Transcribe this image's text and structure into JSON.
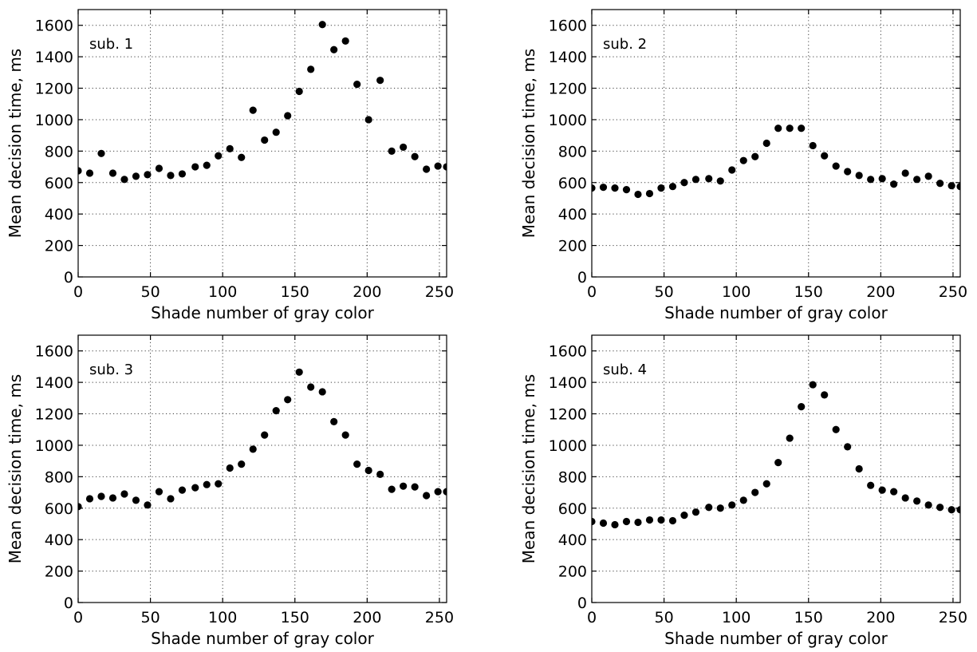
{
  "chart_data": [
    {
      "type": "scatter",
      "title": "",
      "panel_label": "sub. 1",
      "xlabel": "Shade number of gray color",
      "ylabel": "Mean decision time, ms",
      "xlim": [
        0,
        255
      ],
      "ylim": [
        0,
        1700
      ],
      "xticks": [
        0,
        50,
        100,
        150,
        200,
        250
      ],
      "yticks": [
        0,
        200,
        400,
        600,
        800,
        1000,
        1200,
        1400,
        1600
      ],
      "grid": true,
      "marker_color": "#000000",
      "x": [
        0,
        8,
        16,
        24,
        32,
        40,
        48,
        56,
        64,
        72,
        81,
        89,
        97,
        105,
        113,
        121,
        129,
        137,
        145,
        153,
        161,
        169,
        177,
        185,
        193,
        201,
        209,
        217,
        225,
        233,
        241,
        249,
        255
      ],
      "y": [
        675,
        660,
        785,
        660,
        620,
        640,
        650,
        690,
        645,
        655,
        700,
        710,
        770,
        815,
        760,
        1060,
        870,
        920,
        1025,
        1180,
        1320,
        1605,
        1445,
        1500,
        1225,
        1000,
        1250,
        800,
        825,
        765,
        685,
        705,
        700
      ]
    },
    {
      "type": "scatter",
      "title": "",
      "panel_label": "sub. 2",
      "xlabel": "Shade number of gray color",
      "ylabel": "Mean decision time, ms",
      "xlim": [
        0,
        255
      ],
      "ylim": [
        0,
        1700
      ],
      "xticks": [
        0,
        50,
        100,
        150,
        200,
        250
      ],
      "yticks": [
        0,
        200,
        400,
        600,
        800,
        1000,
        1200,
        1400,
        1600
      ],
      "grid": true,
      "marker_color": "#000000",
      "x": [
        0,
        8,
        16,
        24,
        32,
        40,
        48,
        56,
        64,
        72,
        81,
        89,
        97,
        105,
        113,
        121,
        129,
        137,
        145,
        153,
        161,
        169,
        177,
        185,
        193,
        201,
        209,
        217,
        225,
        233,
        241,
        249,
        255
      ],
      "y": [
        565,
        570,
        565,
        555,
        525,
        530,
        565,
        575,
        600,
        620,
        625,
        610,
        680,
        740,
        765,
        850,
        945,
        945,
        945,
        835,
        770,
        705,
        670,
        645,
        620,
        625,
        590,
        660,
        620,
        640,
        595,
        580,
        575
      ]
    },
    {
      "type": "scatter",
      "title": "",
      "panel_label": "sub. 3",
      "xlabel": "Shade number of gray color",
      "ylabel": "Mean decision time, ms",
      "xlim": [
        0,
        255
      ],
      "ylim": [
        0,
        1700
      ],
      "xticks": [
        0,
        50,
        100,
        150,
        200,
        250
      ],
      "yticks": [
        0,
        200,
        400,
        600,
        800,
        1000,
        1200,
        1400,
        1600
      ],
      "grid": true,
      "marker_color": "#000000",
      "x": [
        0,
        8,
        16,
        24,
        32,
        40,
        48,
        56,
        64,
        72,
        81,
        89,
        97,
        105,
        113,
        121,
        129,
        137,
        145,
        153,
        161,
        169,
        177,
        185,
        193,
        201,
        209,
        217,
        225,
        233,
        241,
        249,
        255
      ],
      "y": [
        610,
        660,
        675,
        665,
        690,
        650,
        620,
        705,
        660,
        715,
        730,
        750,
        755,
        855,
        880,
        975,
        1065,
        1220,
        1290,
        1465,
        1370,
        1340,
        1150,
        1065,
        880,
        840,
        815,
        720,
        740,
        735,
        680,
        705,
        705
      ]
    },
    {
      "type": "scatter",
      "title": "",
      "panel_label": "sub. 4",
      "xlabel": "Shade number of gray color",
      "ylabel": "Mean decision time, ms",
      "xlim": [
        0,
        255
      ],
      "ylim": [
        0,
        1700
      ],
      "xticks": [
        0,
        50,
        100,
        150,
        200,
        250
      ],
      "yticks": [
        0,
        200,
        400,
        600,
        800,
        1000,
        1200,
        1400,
        1600
      ],
      "grid": true,
      "marker_color": "#000000",
      "x": [
        0,
        8,
        16,
        24,
        32,
        40,
        48,
        56,
        64,
        72,
        81,
        89,
        97,
        105,
        113,
        121,
        129,
        137,
        145,
        153,
        161,
        169,
        177,
        185,
        193,
        201,
        209,
        217,
        225,
        233,
        241,
        249,
        255
      ],
      "y": [
        515,
        505,
        495,
        515,
        510,
        525,
        525,
        520,
        555,
        575,
        605,
        600,
        620,
        650,
        700,
        755,
        890,
        1045,
        1245,
        1385,
        1320,
        1100,
        990,
        850,
        745,
        715,
        705,
        665,
        645,
        620,
        605,
        590,
        590
      ]
    }
  ]
}
